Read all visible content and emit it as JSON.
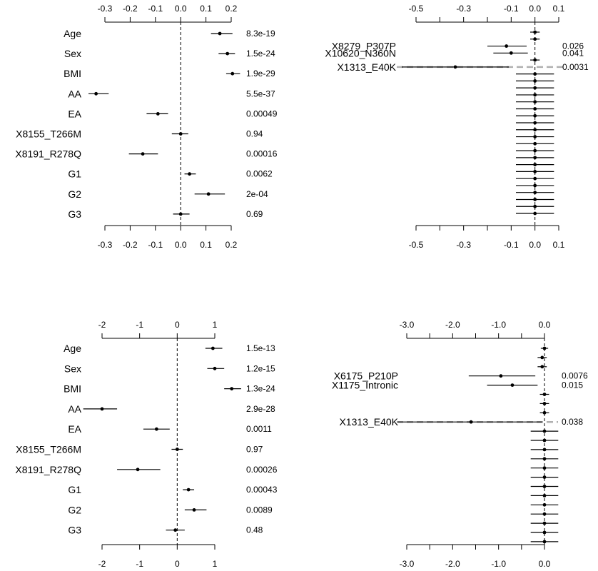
{
  "chart_data": [
    {
      "type": "forest",
      "xlim": [
        -0.3,
        0.2
      ],
      "ticks": [
        -0.3,
        -0.2,
        -0.1,
        0.0,
        0.1,
        0.2
      ],
      "tick_labels": [
        "-0.3",
        "-0.2",
        "-0.1",
        "0.0",
        "0.1",
        "0.2"
      ],
      "reference_line": 0,
      "rows": [
        {
          "label": "Age",
          "estimate": 0.155,
          "lower": 0.12,
          "upper": 0.205,
          "p": "8.3e-19"
        },
        {
          "label": "Sex",
          "estimate": 0.185,
          "lower": 0.15,
          "upper": 0.215,
          "p": "1.5e-24"
        },
        {
          "label": "BMI",
          "estimate": 0.205,
          "lower": 0.18,
          "upper": 0.235,
          "p": "1.9e-29"
        },
        {
          "label": "AA",
          "estimate": -0.335,
          "lower": -0.365,
          "upper": -0.285,
          "p": "5.5e-37"
        },
        {
          "label": "EA",
          "estimate": -0.09,
          "lower": -0.135,
          "upper": -0.05,
          "p": "0.00049"
        },
        {
          "label": "X8155_T266M",
          "estimate": 0.0,
          "lower": -0.035,
          "upper": 0.03,
          "p": "0.94"
        },
        {
          "label": "X8191_R278Q",
          "estimate": -0.15,
          "lower": -0.205,
          "upper": -0.09,
          "p": "0.00016"
        },
        {
          "label": "G1",
          "estimate": 0.035,
          "lower": 0.015,
          "upper": 0.06,
          "p": "0.0062"
        },
        {
          "label": "G2",
          "estimate": 0.11,
          "lower": 0.055,
          "upper": 0.175,
          "p": "2e-04"
        },
        {
          "label": "G3",
          "estimate": 0.0,
          "lower": -0.03,
          "upper": 0.035,
          "p": "0.69"
        }
      ]
    },
    {
      "type": "forest",
      "xlim": [
        -0.5,
        0.1
      ],
      "ticks": [
        -0.5,
        -0.4,
        -0.3,
        -0.2,
        -0.1,
        0.0,
        0.1
      ],
      "tick_labels": [
        "-0.5",
        "",
        "-0.3",
        "",
        "-0.1",
        "0.0",
        "0.1"
      ],
      "reference_line": 0,
      "highlight_row": 5,
      "rows": [
        {
          "label": "",
          "estimate": 0.0,
          "lower": -0.02,
          "upper": 0.02,
          "p": ""
        },
        {
          "label": "",
          "estimate": 0.0,
          "lower": -0.02,
          "upper": 0.02,
          "p": ""
        },
        {
          "label": "X8279_P307P",
          "estimate": -0.12,
          "lower": -0.2,
          "upper": -0.035,
          "p": "0.026"
        },
        {
          "label": "X10620_N360N",
          "estimate": -0.1,
          "lower": -0.175,
          "upper": -0.03,
          "p": "0.041"
        },
        {
          "label": "",
          "estimate": 0.0,
          "lower": -0.02,
          "upper": 0.02,
          "p": ""
        },
        {
          "label": "X1313_E40K",
          "estimate": -0.335,
          "lower": -0.56,
          "upper": -0.11,
          "p": "0.0031"
        },
        {
          "label": "",
          "estimate": 0.0,
          "lower": -0.08,
          "upper": 0.08,
          "p": ""
        },
        {
          "label": "",
          "estimate": 0.0,
          "lower": -0.08,
          "upper": 0.08,
          "p": ""
        },
        {
          "label": "",
          "estimate": 0.0,
          "lower": -0.08,
          "upper": 0.08,
          "p": ""
        },
        {
          "label": "",
          "estimate": 0.0,
          "lower": -0.08,
          "upper": 0.08,
          "p": ""
        },
        {
          "label": "",
          "estimate": 0.0,
          "lower": -0.08,
          "upper": 0.08,
          "p": ""
        },
        {
          "label": "",
          "estimate": 0.0,
          "lower": -0.08,
          "upper": 0.08,
          "p": ""
        },
        {
          "label": "",
          "estimate": 0.0,
          "lower": -0.08,
          "upper": 0.08,
          "p": ""
        },
        {
          "label": "",
          "estimate": 0.0,
          "lower": -0.08,
          "upper": 0.08,
          "p": ""
        },
        {
          "label": "",
          "estimate": 0.0,
          "lower": -0.08,
          "upper": 0.08,
          "p": ""
        },
        {
          "label": "",
          "estimate": 0.0,
          "lower": -0.08,
          "upper": 0.08,
          "p": ""
        },
        {
          "label": "",
          "estimate": 0.0,
          "lower": -0.08,
          "upper": 0.08,
          "p": ""
        },
        {
          "label": "",
          "estimate": 0.0,
          "lower": -0.08,
          "upper": 0.08,
          "p": ""
        },
        {
          "label": "",
          "estimate": 0.0,
          "lower": -0.08,
          "upper": 0.08,
          "p": ""
        },
        {
          "label": "",
          "estimate": 0.0,
          "lower": -0.08,
          "upper": 0.08,
          "p": ""
        },
        {
          "label": "",
          "estimate": 0.0,
          "lower": -0.08,
          "upper": 0.08,
          "p": ""
        },
        {
          "label": "",
          "estimate": 0.0,
          "lower": -0.08,
          "upper": 0.08,
          "p": ""
        },
        {
          "label": "",
          "estimate": 0.0,
          "lower": -0.08,
          "upper": 0.08,
          "p": ""
        },
        {
          "label": "",
          "estimate": 0.0,
          "lower": -0.08,
          "upper": 0.08,
          "p": ""
        },
        {
          "label": "",
          "estimate": 0.0,
          "lower": -0.08,
          "upper": 0.08,
          "p": ""
        },
        {
          "label": "",
          "estimate": 0.0,
          "lower": -0.08,
          "upper": 0.08,
          "p": ""
        },
        {
          "label": "",
          "estimate": 0.0,
          "lower": -0.08,
          "upper": 0.08,
          "p": ""
        }
      ]
    },
    {
      "type": "forest",
      "xlim": [
        -2,
        1
      ],
      "ticks": [
        -2,
        -1,
        0,
        1
      ],
      "tick_labels": [
        "-2",
        "-1",
        "0",
        "1"
      ],
      "reference_line": 0,
      "rows": [
        {
          "label": "Age",
          "estimate": 0.95,
          "lower": 0.75,
          "upper": 1.2,
          "p": "1.5e-13"
        },
        {
          "label": "Sex",
          "estimate": 1.0,
          "lower": 0.8,
          "upper": 1.25,
          "p": "1.2e-15"
        },
        {
          "label": "BMI",
          "estimate": 1.45,
          "lower": 1.25,
          "upper": 1.7,
          "p": "1.3e-24"
        },
        {
          "label": "AA",
          "estimate": -2.0,
          "lower": -2.5,
          "upper": -1.6,
          "p": "2.9e-28"
        },
        {
          "label": "EA",
          "estimate": -0.55,
          "lower": -0.9,
          "upper": -0.2,
          "p": "0.0011"
        },
        {
          "label": "X8155_T266M",
          "estimate": 0.0,
          "lower": -0.15,
          "upper": 0.15,
          "p": "0.97"
        },
        {
          "label": "X8191_R278Q",
          "estimate": -1.05,
          "lower": -1.6,
          "upper": -0.45,
          "p": "0.00026"
        },
        {
          "label": "G1",
          "estimate": 0.3,
          "lower": 0.15,
          "upper": 0.45,
          "p": "0.00043"
        },
        {
          "label": "G2",
          "estimate": 0.45,
          "lower": 0.2,
          "upper": 0.78,
          "p": "0.0089"
        },
        {
          "label": "G3",
          "estimate": -0.05,
          "lower": -0.3,
          "upper": 0.2,
          "p": "0.48"
        }
      ]
    },
    {
      "type": "forest",
      "xlim": [
        -3.0,
        0.0
      ],
      "ticks": [
        -3.0,
        -2.5,
        -2.0,
        -1.5,
        -1.0,
        -0.5,
        0.0
      ],
      "tick_labels": [
        "-3.0",
        "",
        "-2.0",
        "",
        "-1.0",
        "",
        "0.0"
      ],
      "reference_line": 0,
      "highlight_row": 8,
      "rows": [
        {
          "label": "",
          "estimate": 0.0,
          "lower": -0.08,
          "upper": 0.08,
          "p": ""
        },
        {
          "label": "",
          "estimate": -0.05,
          "lower": -0.15,
          "upper": 0.05,
          "p": ""
        },
        {
          "label": "",
          "estimate": -0.05,
          "lower": -0.15,
          "upper": 0.05,
          "p": ""
        },
        {
          "label": "X6175_P210P",
          "estimate": -0.95,
          "lower": -1.65,
          "upper": -0.2,
          "p": "0.0076"
        },
        {
          "label": "X1175_Intronic",
          "estimate": -0.7,
          "lower": -1.25,
          "upper": -0.15,
          "p": "0.015"
        },
        {
          "label": "",
          "estimate": 0.0,
          "lower": -0.1,
          "upper": 0.1,
          "p": ""
        },
        {
          "label": "",
          "estimate": 0.0,
          "lower": -0.1,
          "upper": 0.1,
          "p": ""
        },
        {
          "label": "",
          "estimate": 0.0,
          "lower": -0.1,
          "upper": 0.1,
          "p": ""
        },
        {
          "label": "X1313_E40K",
          "estimate": -1.6,
          "lower": -3.2,
          "upper": -0.05,
          "p": "0.038"
        },
        {
          "label": "",
          "estimate": 0.0,
          "lower": -0.3,
          "upper": 0.3,
          "p": ""
        },
        {
          "label": "",
          "estimate": 0.0,
          "lower": -0.3,
          "upper": 0.3,
          "p": ""
        },
        {
          "label": "",
          "estimate": 0.0,
          "lower": -0.3,
          "upper": 0.3,
          "p": ""
        },
        {
          "label": "",
          "estimate": 0.0,
          "lower": -0.3,
          "upper": 0.3,
          "p": ""
        },
        {
          "label": "",
          "estimate": 0.0,
          "lower": -0.3,
          "upper": 0.3,
          "p": ""
        },
        {
          "label": "",
          "estimate": 0.0,
          "lower": -0.3,
          "upper": 0.3,
          "p": ""
        },
        {
          "label": "",
          "estimate": 0.0,
          "lower": -0.3,
          "upper": 0.3,
          "p": ""
        },
        {
          "label": "",
          "estimate": 0.0,
          "lower": -0.3,
          "upper": 0.3,
          "p": ""
        },
        {
          "label": "",
          "estimate": 0.0,
          "lower": -0.3,
          "upper": 0.3,
          "p": ""
        },
        {
          "label": "",
          "estimate": 0.0,
          "lower": -0.3,
          "upper": 0.3,
          "p": ""
        },
        {
          "label": "",
          "estimate": 0.0,
          "lower": -0.3,
          "upper": 0.3,
          "p": ""
        },
        {
          "label": "",
          "estimate": 0.0,
          "lower": -0.3,
          "upper": 0.3,
          "p": ""
        },
        {
          "label": "",
          "estimate": 0.0,
          "lower": -0.3,
          "upper": 0.3,
          "p": ""
        }
      ]
    }
  ]
}
